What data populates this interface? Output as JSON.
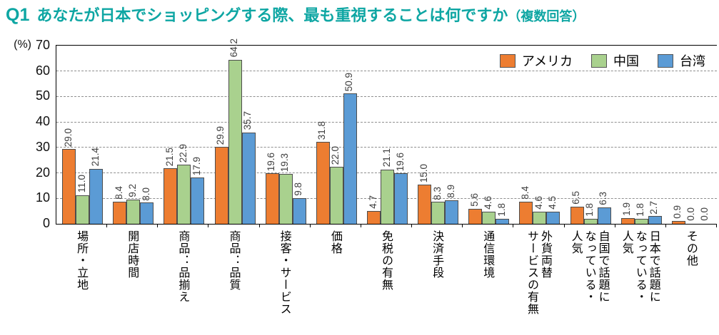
{
  "title": {
    "q": "Q1",
    "main": "あなたが日本でショッピングする際、最も重視することは何ですか",
    "suffix": "（複数回答）"
  },
  "axis": {
    "unit": "(%)",
    "y_ticks": [
      70,
      60,
      50,
      40,
      30,
      20,
      10,
      0
    ],
    "y_max": 70
  },
  "legend": [
    {
      "name": "アメリカ",
      "color": "#ED7D31"
    },
    {
      "name": "中国",
      "color": "#A9D18E"
    },
    {
      "name": "台湾",
      "color": "#5B9BD5"
    }
  ],
  "chart_data": {
    "type": "bar",
    "title": "Q1 あなたが日本でショッピングする際、最も重視することは何ですか（複数回答）",
    "xlabel": "",
    "ylabel": "(%)",
    "ylim": [
      0,
      70
    ],
    "grid": "horizontal-dashed",
    "legend_position": "top-right",
    "value_labels": "rotated-90-one-decimal",
    "categories": [
      "場所・立地",
      "開店時間",
      "商品：品揃え",
      "商品：品質",
      "接客・サービス",
      "価格",
      "免税の有無",
      "決済手段",
      "通信環境",
      "外貨両替\nサービスの有無",
      "自国で話題に\nなっている・\n人気",
      "日本で話題に\nなっている・\n人気",
      "その他"
    ],
    "series": [
      {
        "name": "アメリカ",
        "color": "#ED7D31",
        "values": [
          29.0,
          8.4,
          21.5,
          29.9,
          19.6,
          31.8,
          4.7,
          15.0,
          5.6,
          8.4,
          6.5,
          1.9,
          0.9
        ]
      },
      {
        "name": "中国",
        "color": "#A9D18E",
        "values": [
          11.0,
          9.2,
          22.9,
          64.2,
          19.3,
          22.0,
          21.1,
          8.3,
          4.6,
          4.6,
          1.8,
          1.8,
          0.0
        ]
      },
      {
        "name": "台湾",
        "color": "#5B9BD5",
        "values": [
          21.4,
          8.0,
          17.9,
          35.7,
          9.8,
          50.9,
          19.6,
          8.9,
          1.8,
          4.5,
          6.3,
          2.7,
          0.0
        ]
      }
    ]
  }
}
